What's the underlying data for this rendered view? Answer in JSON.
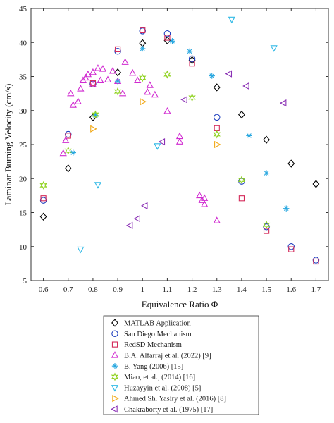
{
  "chart_data": {
    "type": "scatter",
    "xlabel": "Equivalence Ratio Φ",
    "ylabel": "Laminar Burning Velocity (cm/s)",
    "xlim": [
      0.55,
      1.75
    ],
    "ylim": [
      5,
      45
    ],
    "xticks": [
      "0.6",
      "0.7",
      "0.8",
      "0.9",
      "1",
      "1.1",
      "1.2",
      "1.3",
      "1.4",
      "1.5",
      "1.6",
      "1.7"
    ],
    "yticks": [
      "5",
      "10",
      "15",
      "20",
      "25",
      "30",
      "35",
      "40",
      "45"
    ],
    "legend_position": "below",
    "series": [
      {
        "name": "MATLAB Application",
        "marker": "diamond",
        "color": "#000000",
        "points": [
          [
            0.6,
            14.4
          ],
          [
            0.7,
            21.5
          ],
          [
            0.8,
            29.0
          ],
          [
            0.9,
            35.6
          ],
          [
            1.0,
            39.9
          ],
          [
            1.1,
            40.3
          ],
          [
            1.2,
            37.4
          ],
          [
            1.3,
            33.4
          ],
          [
            1.4,
            29.4
          ],
          [
            1.5,
            25.7
          ],
          [
            1.6,
            22.2
          ],
          [
            1.7,
            19.2
          ]
        ]
      },
      {
        "name": "San Diego Mechanism",
        "marker": "circle",
        "color": "#1f3fbf",
        "points": [
          [
            0.6,
            16.8
          ],
          [
            0.7,
            26.5
          ],
          [
            0.8,
            33.9
          ],
          [
            0.9,
            38.7
          ],
          [
            1.0,
            41.7
          ],
          [
            1.1,
            41.3
          ],
          [
            1.2,
            37.6
          ],
          [
            1.3,
            29.0
          ],
          [
            1.4,
            19.6
          ],
          [
            1.5,
            12.9
          ],
          [
            1.6,
            10.0
          ],
          [
            1.7,
            8.0
          ]
        ]
      },
      {
        "name": "RedSD Mechanism",
        "marker": "square",
        "color": "#d42a5a",
        "points": [
          [
            0.6,
            17.1
          ],
          [
            0.7,
            26.3
          ],
          [
            0.8,
            34.0
          ],
          [
            0.9,
            39.0
          ],
          [
            1.0,
            41.8
          ],
          [
            1.1,
            40.7
          ],
          [
            1.2,
            36.9
          ],
          [
            1.3,
            27.4
          ],
          [
            1.4,
            17.1
          ],
          [
            1.5,
            12.3
          ],
          [
            1.6,
            9.6
          ],
          [
            1.7,
            7.8
          ]
        ]
      },
      {
        "name": "B.A. Alfarraj et al. (2022) [9]",
        "marker": "triangle-up",
        "color": "#d12bd1",
        "points": [
          [
            0.68,
            23.7
          ],
          [
            0.69,
            25.6
          ],
          [
            0.71,
            32.5
          ],
          [
            0.72,
            30.8
          ],
          [
            0.74,
            31.3
          ],
          [
            0.75,
            33.2
          ],
          [
            0.76,
            34.4
          ],
          [
            0.77,
            34.8
          ],
          [
            0.78,
            35.3
          ],
          [
            0.8,
            33.8
          ],
          [
            0.8,
            35.6
          ],
          [
            0.82,
            36.2
          ],
          [
            0.83,
            34.4
          ],
          [
            0.84,
            36.1
          ],
          [
            0.86,
            34.5
          ],
          [
            0.88,
            35.8
          ],
          [
            0.9,
            34.3
          ],
          [
            0.92,
            32.5
          ],
          [
            0.93,
            37.1
          ],
          [
            0.96,
            35.5
          ],
          [
            0.98,
            34.4
          ],
          [
            1.02,
            32.7
          ],
          [
            1.03,
            33.7
          ],
          [
            1.05,
            32.3
          ],
          [
            1.1,
            29.9
          ],
          [
            1.15,
            26.2
          ],
          [
            1.15,
            25.4
          ],
          [
            1.23,
            17.5
          ],
          [
            1.24,
            16.8
          ],
          [
            1.25,
            16.2
          ],
          [
            1.25,
            17.1
          ],
          [
            1.3,
            13.8
          ]
        ]
      },
      {
        "name": "B. Yang (2006) [15]",
        "marker": "asterisk",
        "color": "#2aa8e0",
        "points": [
          [
            0.72,
            23.8
          ],
          [
            0.81,
            29.3
          ],
          [
            0.9,
            34.3
          ],
          [
            1.0,
            39.1
          ],
          [
            1.12,
            40.2
          ],
          [
            1.19,
            38.7
          ],
          [
            1.28,
            35.1
          ],
          [
            1.43,
            26.3
          ],
          [
            1.5,
            20.8
          ],
          [
            1.58,
            15.6
          ]
        ]
      },
      {
        "name": "Miao, et al., (2014) [16]",
        "marker": "star",
        "color": "#8fd21f",
        "points": [
          [
            0.6,
            19.0
          ],
          [
            0.7,
            24.1
          ],
          [
            0.81,
            29.4
          ],
          [
            0.9,
            32.8
          ],
          [
            1.0,
            34.8
          ],
          [
            1.1,
            35.3
          ],
          [
            1.2,
            31.9
          ],
          [
            1.3,
            26.5
          ],
          [
            1.4,
            19.8
          ],
          [
            1.5,
            13.2
          ]
        ]
      },
      {
        "name": "Huzayyin et al. (2008) [5]",
        "marker": "triangle-down",
        "color": "#31b9e6",
        "points": [
          [
            0.75,
            9.6
          ],
          [
            0.82,
            19.1
          ],
          [
            1.06,
            24.8
          ],
          [
            1.36,
            43.4
          ],
          [
            1.53,
            39.2
          ]
        ]
      },
      {
        "name": "Ahmed Sh. Yasiry et al. (2016) [8]",
        "marker": "triangle-right",
        "color": "#f1a815",
        "points": [
          [
            0.8,
            27.3
          ],
          [
            1.0,
            31.3
          ],
          [
            1.3,
            25.0
          ]
        ]
      },
      {
        "name": "Chakraborty et al. (1975) [17]",
        "marker": "triangle-left",
        "color": "#8a2fb5",
        "points": [
          [
            0.95,
            13.1
          ],
          [
            0.98,
            14.1
          ],
          [
            1.01,
            16.0
          ],
          [
            1.08,
            25.4
          ],
          [
            1.17,
            31.6
          ],
          [
            1.35,
            35.4
          ],
          [
            1.42,
            33.6
          ],
          [
            1.57,
            31.1
          ]
        ]
      }
    ]
  }
}
